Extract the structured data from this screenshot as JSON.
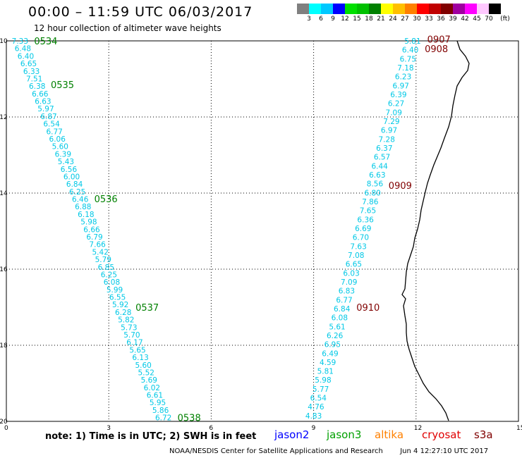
{
  "header": {
    "title": "00:00 – 11:59 UTC 06/03/2017",
    "subtitle": "12 hour collection of altimeter wave heights"
  },
  "colorbar": {
    "colors": [
      "#808080",
      "#00ffff",
      "#00c8ff",
      "#0000ff",
      "#00e000",
      "#00c000",
      "#008000",
      "#ffff00",
      "#ffc000",
      "#ff8000",
      "#ff0000",
      "#c00000",
      "#800000",
      "#a000a0",
      "#ff00ff",
      "#ffc8ff",
      "#000000"
    ],
    "labels": [
      "3",
      "6",
      "9",
      "12",
      "15",
      "18",
      "21",
      "24",
      "27",
      "30",
      "33",
      "36",
      "39",
      "42",
      "45",
      "70",
      "(ft)"
    ]
  },
  "chart_data": {
    "type": "map",
    "xlim": [
      0,
      15
    ],
    "ylim": [
      -20,
      -10
    ],
    "x_ticks": [
      "0",
      "3",
      "6",
      "9",
      "12",
      "15"
    ],
    "y_ticks": [
      "-10",
      "-12",
      "-14",
      "-16",
      "-18",
      "-20"
    ],
    "grid": true,
    "tracks": [
      {
        "color": "#00c8e6",
        "start": [
          0.4,
          -10.0
        ],
        "end": [
          4.6,
          -19.9
        ],
        "values": [
          "7.33",
          "6.48",
          "6.40",
          "6.65",
          "6.33",
          "7.51",
          "6.38",
          "6.66",
          "6.63",
          "5.97",
          "6.87",
          "6.54",
          "6.77",
          "6.06",
          "5.60",
          "6.39",
          "5.43",
          "6.56",
          "6.00",
          "6.84",
          "6.25",
          "6.46",
          "6.88",
          "6.18",
          "5.98",
          "6.66",
          "6.79",
          "7.66",
          "5.42",
          "5.79",
          "6.85",
          "6.25",
          "6.08",
          "5.99",
          "6.55",
          "5.92",
          "6.28",
          "5.82",
          "5.73",
          "5.70",
          "6.17",
          "5.65",
          "6.13",
          "5.60",
          "5.52",
          "5.69",
          "6.02",
          "6.61",
          "5.95",
          "5.86",
          "6.72"
        ],
        "times": [
          {
            "label": "0534",
            "lat": -10.0
          },
          {
            "label": "0535",
            "lat": -11.15
          },
          {
            "label": "0536",
            "lat": -14.15
          },
          {
            "label": "0537",
            "lat": -17.0
          },
          {
            "label": "0538",
            "lat": -19.9
          }
        ],
        "time_color": "#008000"
      },
      {
        "color": "#00c8e6",
        "start": [
          11.9,
          -10.0
        ],
        "end": [
          9.0,
          -19.85
        ],
        "values": [
          "5.81",
          "6.40",
          "6.75",
          "7.18",
          "6.23",
          "6.97",
          "6.39",
          "6.27",
          "7.09",
          "7.29",
          "6.97",
          "7.28",
          "6.37",
          "6.57",
          "6.44",
          "6.63",
          "8.56",
          "6.80",
          "7.86",
          "7.65",
          "6.36",
          "6.69",
          "6.70",
          "7.63",
          "7.08",
          "6.65",
          "6.03",
          "7.09",
          "6.83",
          "6.77",
          "6.84",
          "6.08",
          "5.61",
          "6.26",
          "6.95",
          "6.49",
          "4.59",
          "5.81",
          "5.98",
          "5.77",
          "6.54",
          "4.76",
          "4.83"
        ],
        "times": [
          {
            "label": "0907",
            "lat": -9.95
          },
          {
            "label": "0908",
            "lat": -10.2
          },
          {
            "label": "0909",
            "lat": -13.8
          },
          {
            "label": "0910",
            "lat": -17.0
          }
        ],
        "time_color": "#800000"
      }
    ]
  },
  "note": {
    "text": "note:  1) Time is in UTC;  2) SWH is in feet"
  },
  "satellites": [
    {
      "name": "jason2",
      "color": "#0000ff"
    },
    {
      "name": "jason3",
      "color": "#00a000"
    },
    {
      "name": "altika",
      "color": "#ff8000"
    },
    {
      "name": "cryosat",
      "color": "#e00000"
    },
    {
      "name": "s3a",
      "color": "#800000"
    }
  ],
  "footer": {
    "credit": "NOAA/NESDIS Center for Satellite Applications and Research",
    "timestamp": "Jun  4 12:27:10 UTC 2017"
  }
}
